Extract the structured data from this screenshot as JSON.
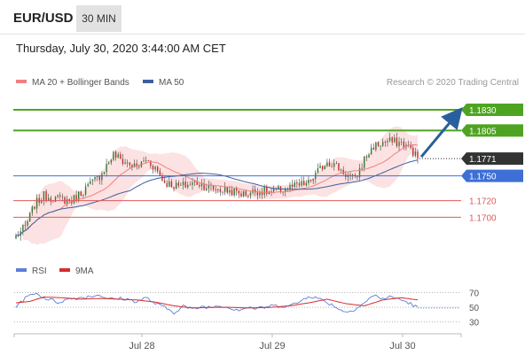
{
  "header": {
    "symbol": "EUR/USD",
    "timeframe": "30 MIN",
    "datetime": "Thursday, July 30, 2020 3:44:00 AM CET"
  },
  "legend": {
    "ma20_bb": "MA 20 + Bollinger Bands",
    "ma50": "MA 50",
    "research": "Research © 2020 Trading Central",
    "rsi": "RSI",
    "rsi_ma": "9MA"
  },
  "colors": {
    "up_target": "#4ea421",
    "pivot": "#3d6fd6",
    "support": "#e05a5a",
    "last_price": "#333333",
    "ma20": "#f08080",
    "ma50": "#3e5f9e",
    "bb_fill": "#fbd8d8",
    "arrow": "#2a5f9e",
    "candle_up": "#2e7d32",
    "candle_down": "#c62828",
    "rsi": "#5b7fd6",
    "rsi_ma": "#d92b2b"
  },
  "chart_data": [
    {
      "type": "candlestick",
      "x_labels": [
        "Jul 28",
        "Jul 29",
        "Jul 30"
      ],
      "ylim": [
        1.1665,
        1.1845
      ],
      "levels": [
        {
          "value": 1.183,
          "label": "1.1830",
          "kind": "resistance"
        },
        {
          "value": 1.1805,
          "label": "1.1805",
          "kind": "resistance"
        },
        {
          "value": 1.1771,
          "label": "1.1771",
          "kind": "last"
        },
        {
          "value": 1.175,
          "label": "1.1750",
          "kind": "pivot"
        },
        {
          "value": 1.172,
          "label": "1.1720",
          "kind": "support"
        },
        {
          "value": 1.17,
          "label": "1.1700",
          "kind": "support"
        }
      ],
      "arrow": {
        "from": 1.1773,
        "to": 1.1829
      },
      "close_anchors": [
        [
          0,
          1.1677
        ],
        [
          4,
          1.1688
        ],
        [
          8,
          1.1715
        ],
        [
          12,
          1.1726
        ],
        [
          18,
          1.1722
        ],
        [
          24,
          1.172
        ],
        [
          30,
          1.1735
        ],
        [
          36,
          1.175
        ],
        [
          42,
          1.1776
        ],
        [
          46,
          1.1768
        ],
        [
          52,
          1.176
        ],
        [
          56,
          1.177
        ],
        [
          60,
          1.176
        ],
        [
          64,
          1.1742
        ],
        [
          70,
          1.1737
        ],
        [
          78,
          1.1742
        ],
        [
          84,
          1.1735
        ],
        [
          92,
          1.1732
        ],
        [
          98,
          1.1728
        ],
        [
          104,
          1.1732
        ],
        [
          110,
          1.173
        ],
        [
          118,
          1.1736
        ],
        [
          126,
          1.1741
        ],
        [
          130,
          1.1755
        ],
        [
          134,
          1.1768
        ],
        [
          138,
          1.1762
        ],
        [
          142,
          1.1752
        ],
        [
          146,
          1.1745
        ],
        [
          150,
          1.177
        ],
        [
          154,
          1.1786
        ],
        [
          160,
          1.1792
        ],
        [
          166,
          1.179
        ],
        [
          170,
          1.1783
        ],
        [
          173,
          1.1771
        ]
      ]
    },
    {
      "type": "line",
      "title": "RSI",
      "ylim": [
        20,
        85
      ],
      "y_ticks": [
        30,
        50,
        70
      ],
      "series": [
        {
          "name": "RSI",
          "values": [
            [
              0,
              52
            ],
            [
              4,
              62
            ],
            [
              8,
              70
            ],
            [
              12,
              63
            ],
            [
              18,
              57
            ],
            [
              24,
              62
            ],
            [
              30,
              64
            ],
            [
              36,
              67
            ],
            [
              40,
              61
            ],
            [
              46,
              62
            ],
            [
              52,
              58
            ],
            [
              56,
              63
            ],
            [
              60,
              55
            ],
            [
              64,
              50
            ],
            [
              68,
              43
            ],
            [
              72,
              52
            ],
            [
              76,
              47
            ],
            [
              80,
              51
            ],
            [
              84,
              50
            ],
            [
              88,
              53
            ],
            [
              92,
              49
            ],
            [
              96,
              47
            ],
            [
              100,
              50
            ],
            [
              104,
              48
            ],
            [
              110,
              52
            ],
            [
              118,
              52
            ],
            [
              122,
              57
            ],
            [
              126,
              66
            ],
            [
              130,
              62
            ],
            [
              134,
              57
            ],
            [
              138,
              50
            ],
            [
              142,
              43
            ],
            [
              146,
              48
            ],
            [
              150,
              56
            ],
            [
              154,
              66
            ],
            [
              158,
              62
            ],
            [
              162,
              64
            ],
            [
              166,
              60
            ],
            [
              170,
              55
            ],
            [
              173,
              49
            ]
          ]
        },
        {
          "name": "9MA",
          "values": [
            [
              0,
              56
            ],
            [
              6,
              58
            ],
            [
              12,
              64
            ],
            [
              20,
              63
            ],
            [
              28,
              61
            ],
            [
              36,
              62
            ],
            [
              44,
              61
            ],
            [
              52,
              60
            ],
            [
              60,
              57
            ],
            [
              68,
              52
            ],
            [
              76,
              49
            ],
            [
              84,
              50
            ],
            [
              92,
              50
            ],
            [
              100,
              49
            ],
            [
              110,
              50
            ],
            [
              118,
              52
            ],
            [
              126,
              56
            ],
            [
              134,
              61
            ],
            [
              142,
              55
            ],
            [
              150,
              52
            ],
            [
              158,
              60
            ],
            [
              166,
              63
            ],
            [
              173,
              60
            ]
          ]
        }
      ]
    }
  ]
}
